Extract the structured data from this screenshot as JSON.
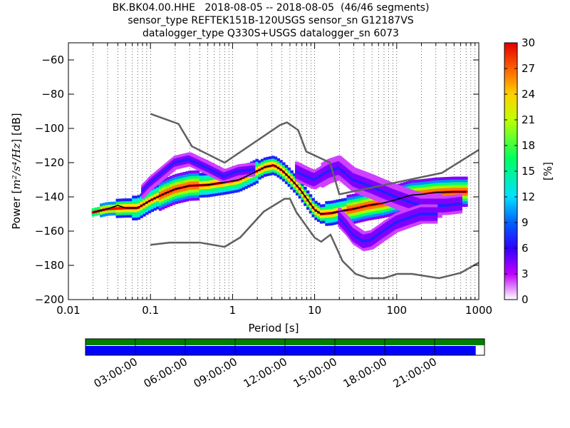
{
  "title": {
    "line1": "BK.BK04.00.HHE   2018-08-05 -- 2018-08-05  (46/46 segments)",
    "line2": "sensor_type REFTEK151B-120USGS sensor_sn G12187VS",
    "line3": "datalogger_type Q330S+USGS datalogger_sn 6073"
  },
  "chart_data": {
    "type": "heatmap",
    "xlabel": "Period [s]",
    "ylabel_prefix": "Power [",
    "ylabel_math": "m²/s⁴/Hz",
    "ylabel_suffix": "] [dB]",
    "xscale": "log",
    "xlim": [
      0.01,
      1000
    ],
    "ylim": [
      -200,
      -50
    ],
    "x_ticks": [
      0.01,
      0.1,
      1,
      10,
      100,
      1000
    ],
    "x_tick_labels": [
      "0.01",
      "0.1",
      "1",
      "10",
      "100",
      "1000"
    ],
    "y_ticks": [
      -200,
      -180,
      -160,
      -140,
      -120,
      -100,
      -80,
      -60
    ],
    "y_tick_labels": [
      "−200",
      "−180",
      "−160",
      "−140",
      "−120",
      "−100",
      "−80",
      "−60"
    ],
    "grid": "dotted vertical",
    "colorbar": {
      "label": "[%]",
      "range": [
        0,
        30
      ],
      "ticks": [
        0,
        3,
        6,
        9,
        12,
        15,
        18,
        21,
        24,
        27,
        30
      ]
    },
    "noise_models": {
      "high": {
        "name": "NHNM",
        "x": [
          0.1,
          0.22,
          0.32,
          0.8,
          3.8,
          4.6,
          6.3,
          7.9,
          15.4,
          20,
          354.8,
          1000
        ],
        "y": [
          -91.5,
          -97.4,
          -110.5,
          -120,
          -98,
          -96.5,
          -101,
          -113.5,
          -120,
          -138.5,
          -126,
          -112.5
        ]
      },
      "low": {
        "name": "NLNM",
        "x": [
          0.1,
          0.17,
          0.4,
          0.8,
          1.24,
          2.4,
          4.3,
          5,
          6,
          10,
          12,
          15.6,
          21.9,
          31.6,
          45,
          70,
          101,
          154,
          328,
          600,
          1000
        ],
        "y": [
          -168,
          -166.7,
          -166.7,
          -169.2,
          -163.7,
          -148.6,
          -141.1,
          -141.1,
          -149,
          -163.8,
          -166.2,
          -162.1,
          -177.5,
          -185,
          -187.5,
          -187.5,
          -185,
          -185,
          -187.5,
          -184.4,
          -178.4
        ]
      }
    },
    "mode_curve": {
      "x": [
        0.02,
        0.03,
        0.04,
        0.05,
        0.07,
        0.1,
        0.15,
        0.2,
        0.3,
        0.5,
        0.8,
        1.2,
        1.8,
        2.5,
        3.2,
        4,
        5,
        6.5,
        8,
        10,
        12,
        16,
        20,
        30,
        45,
        70,
        100,
        150,
        200,
        300,
        500,
        700
      ],
      "y": [
        -149,
        -147,
        -145,
        -146.5,
        -146.5,
        -142,
        -138,
        -135.5,
        -133.5,
        -133,
        -131.5,
        -130,
        -126,
        -122.5,
        -121.5,
        -124.5,
        -129,
        -135,
        -141,
        -147.5,
        -150,
        -149.5,
        -148.5,
        -147,
        -145,
        -143.5,
        -141.5,
        -139,
        -138.5,
        -137.5,
        -137,
        -137
      ]
    },
    "density_bands": [
      {
        "x": [
          0.02,
          0.03,
          0.05,
          0.07,
          0.1,
          0.15,
          0.2,
          0.3,
          0.5,
          0.8,
          1.2,
          1.8,
          2.5,
          3.2,
          4,
          5,
          6.5,
          8,
          10,
          12,
          16,
          20,
          30,
          45,
          70,
          100,
          150,
          200,
          300,
          500,
          700
        ],
        "y": [
          -149,
          -147,
          -146.5,
          -146.5,
          -142,
          -138,
          -135.5,
          -133.5,
          -133,
          -131.5,
          -130,
          -126,
          -122.5,
          -121.5,
          -124.5,
          -129,
          -135,
          -141,
          -147.5,
          -150,
          -149.5,
          -148.5,
          -147,
          -145,
          -143.5,
          -141.5,
          -139,
          -138.5,
          -137.5,
          -137,
          -137
        ],
        "spread": [
          1,
          2,
          3,
          4,
          4,
          5,
          5,
          5,
          4,
          4,
          4,
          4,
          3,
          3,
          3,
          3,
          3,
          3,
          3,
          3,
          4,
          4,
          5,
          5,
          5,
          5,
          5,
          5,
          5,
          5,
          5
        ]
      },
      {
        "x": [
          0.08,
          0.1,
          0.15,
          0.2,
          0.3,
          0.5,
          0.8,
          1.2,
          1.8
        ],
        "y": [
          -137,
          -132,
          -125,
          -120,
          -118,
          -123,
          -128,
          -125,
          -124
        ],
        "spread": [
          2,
          2,
          2,
          2,
          2,
          2,
          2,
          2,
          2
        ]
      },
      {
        "x": [
          6,
          8,
          10,
          15,
          20,
          30,
          50,
          70,
          100,
          150,
          200,
          300,
          400,
          600
        ],
        "y": [
          -125,
          -128,
          -130,
          -125,
          -123,
          -130,
          -134,
          -137,
          -140,
          -143,
          -145,
          -145,
          -145,
          -144
        ],
        "spread": [
          3,
          3,
          3,
          4,
          4,
          4,
          4,
          4,
          4,
          4,
          4,
          4,
          3,
          3
        ]
      },
      {
        "x": [
          20,
          25,
          30,
          40,
          50,
          70,
          100,
          150,
          200,
          300
        ],
        "y": [
          -152,
          -157,
          -162,
          -166,
          -165,
          -160,
          -155,
          -152,
          -150,
          -150
        ],
        "spread": [
          3,
          3,
          3,
          3,
          3,
          3,
          3,
          3,
          3,
          3
        ]
      }
    ]
  },
  "timeline": {
    "tick_labels": [
      "03:00:00",
      "06:00:00",
      "09:00:00",
      "12:00:00",
      "15:00:00",
      "18:00:00",
      "21:00:00"
    ],
    "data_coverage_fraction": 0.978,
    "colors": {
      "top_bar": "#008000",
      "bottom_bar": "#0000ff"
    }
  }
}
